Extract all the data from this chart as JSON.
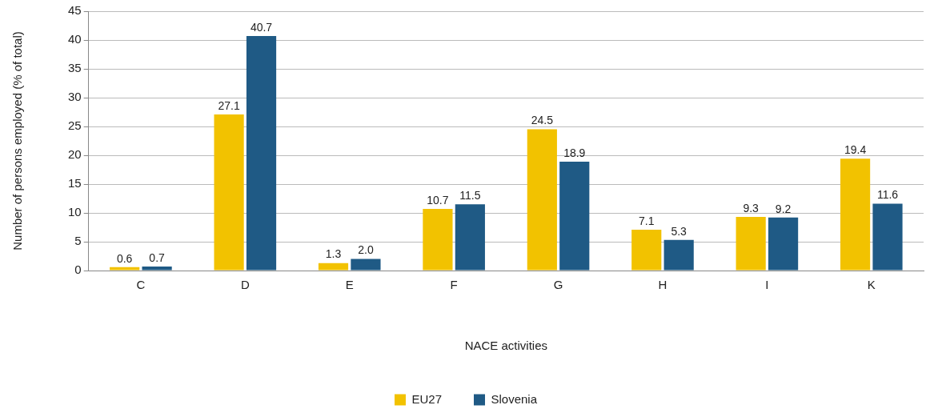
{
  "chart_data": {
    "type": "bar",
    "xlabel": "NACE activities",
    "ylabel": "Number of persons employed (% of total)",
    "categories": [
      "C",
      "D",
      "E",
      "F",
      "G",
      "H",
      "I",
      "K"
    ],
    "series": [
      {
        "name": "EU27",
        "color": "#f2c200",
        "values": [
          0.6,
          27.1,
          1.3,
          10.7,
          24.5,
          7.1,
          9.3,
          19.4
        ],
        "value_labels": [
          "0.6",
          "27.1",
          "1.3",
          "10.7",
          "24.5",
          "7.1",
          "9.3",
          "19.4"
        ]
      },
      {
        "name": "Slovenia",
        "color": "#1f5a85",
        "values": [
          0.7,
          40.7,
          2.0,
          11.5,
          18.9,
          5.3,
          9.2,
          11.6
        ],
        "value_labels": [
          "0.7",
          "40.7",
          "2.0",
          "11.5",
          "18.9",
          "5.3",
          "9.2",
          "11.6"
        ]
      }
    ],
    "ylim": [
      0,
      45
    ],
    "yticks": [
      0,
      5,
      10,
      15,
      20,
      25,
      30,
      35,
      40,
      45
    ],
    "grid": "y",
    "legend": "bottom"
  }
}
